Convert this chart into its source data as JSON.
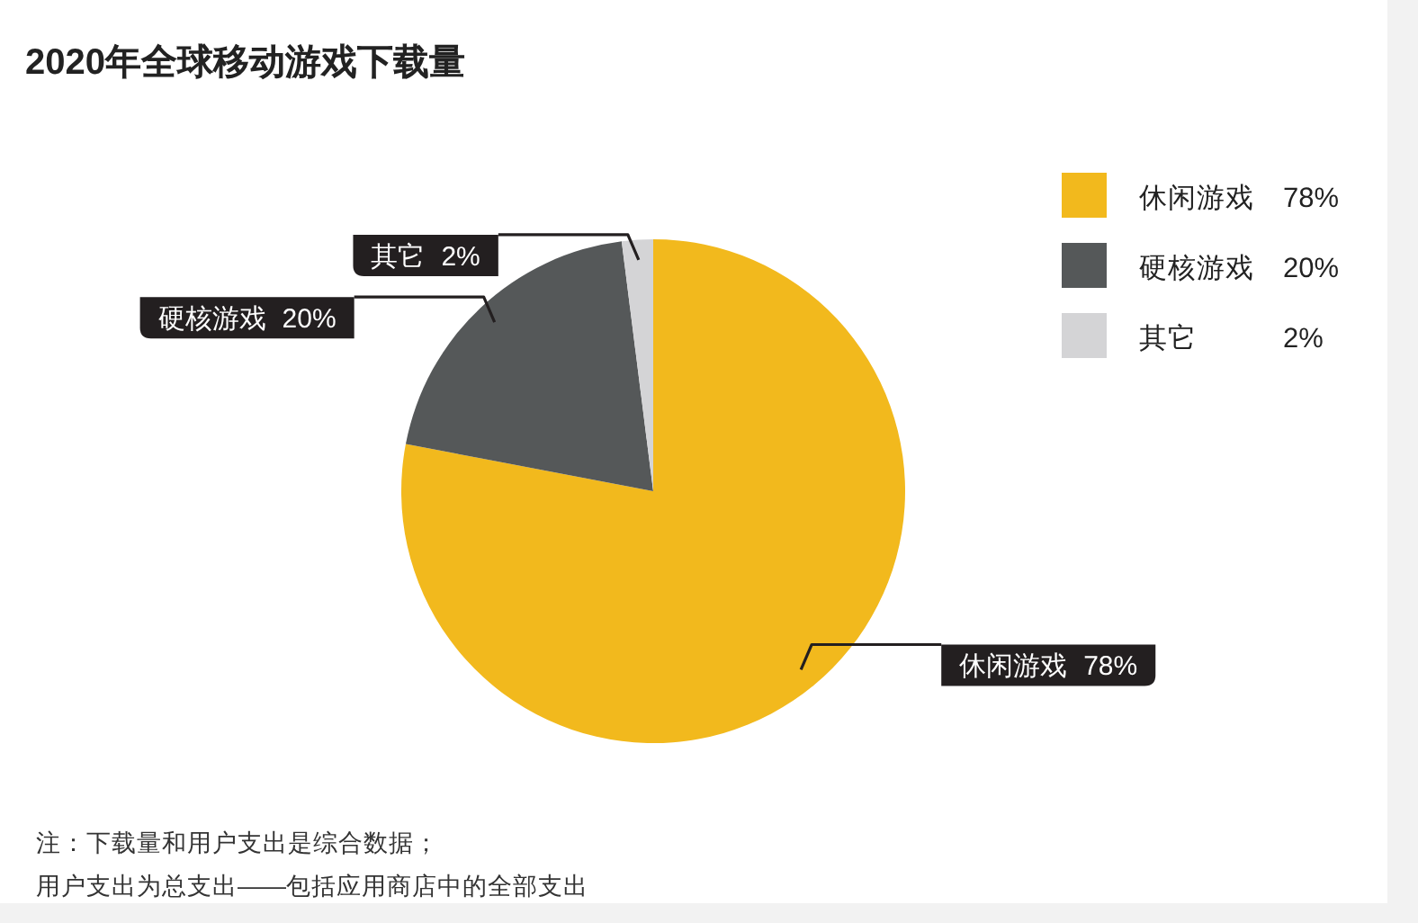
{
  "chart_data": {
    "type": "pie",
    "title": "2020年全球移动游戏下载量",
    "categories": [
      "休闲游戏",
      "硬核游戏",
      "其它"
    ],
    "values": [
      78,
      20,
      2
    ],
    "colors": [
      "#f2b91d",
      "#555859",
      "#d4d4d6"
    ],
    "value_labels": [
      "78%",
      "20%",
      "2%"
    ],
    "legend": "top right",
    "annotations": [
      "注：下载量和用户支出是综合数据；",
      "用户支出为总支出——包括应用商店中的全部支出"
    ]
  }
}
